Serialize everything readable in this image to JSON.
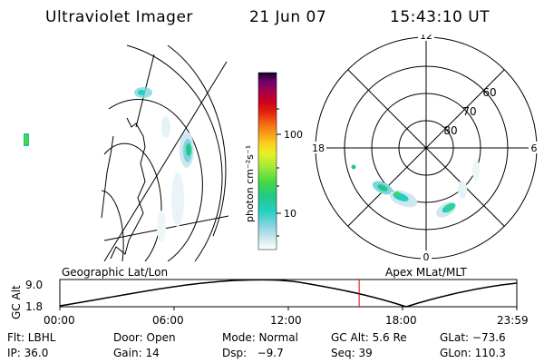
{
  "header": {
    "title": "Ultraviolet Imager",
    "date": "21 Jun 07",
    "time": "15:43:10 UT"
  },
  "colorbar": {
    "label": "photon cm⁻²s⁻¹",
    "ticks": [
      "100",
      "10"
    ],
    "scale": "log",
    "colors": [
      "#ffffff",
      "#cfe8f0",
      "#7fd4e0",
      "#22d0c0",
      "#22c88a",
      "#44d844",
      "#9ae838",
      "#e8f028",
      "#f8d020",
      "#f89818",
      "#f06010",
      "#e02010",
      "#c80020",
      "#a00050",
      "#700070",
      "#380060",
      "#100020"
    ]
  },
  "left_panel": {
    "caption": "Geographic Lat/Lon"
  },
  "right_panel": {
    "caption": "Apex MLat/MLT",
    "mlt_labels": [
      "12",
      "18",
      "6",
      "0"
    ],
    "lat_labels": [
      "60",
      "70",
      "80"
    ]
  },
  "altitude_plot": {
    "ylabel": "GC Alt",
    "ytick_top": "9.0",
    "ytick_bottom": "1.8",
    "xticks": [
      "00:00",
      "06:00",
      "12:00",
      "18:00",
      "23:59"
    ],
    "marker_time_fraction": 0.655,
    "marker_color": "#e00000"
  },
  "info": {
    "row1": {
      "flt": "Flt: LBHL",
      "door": "Door: Open",
      "mode": "Mode: Normal",
      "gcalt": "GC Alt: 5.6 Re",
      "glat": "GLat: −73.6"
    },
    "row2": {
      "ip": "IP: 36.0",
      "gain": "Gain: 14",
      "dsp": "Dsp:   −9.7",
      "seq": "Seq: 39",
      "glon": "GLon: 110.3"
    }
  }
}
